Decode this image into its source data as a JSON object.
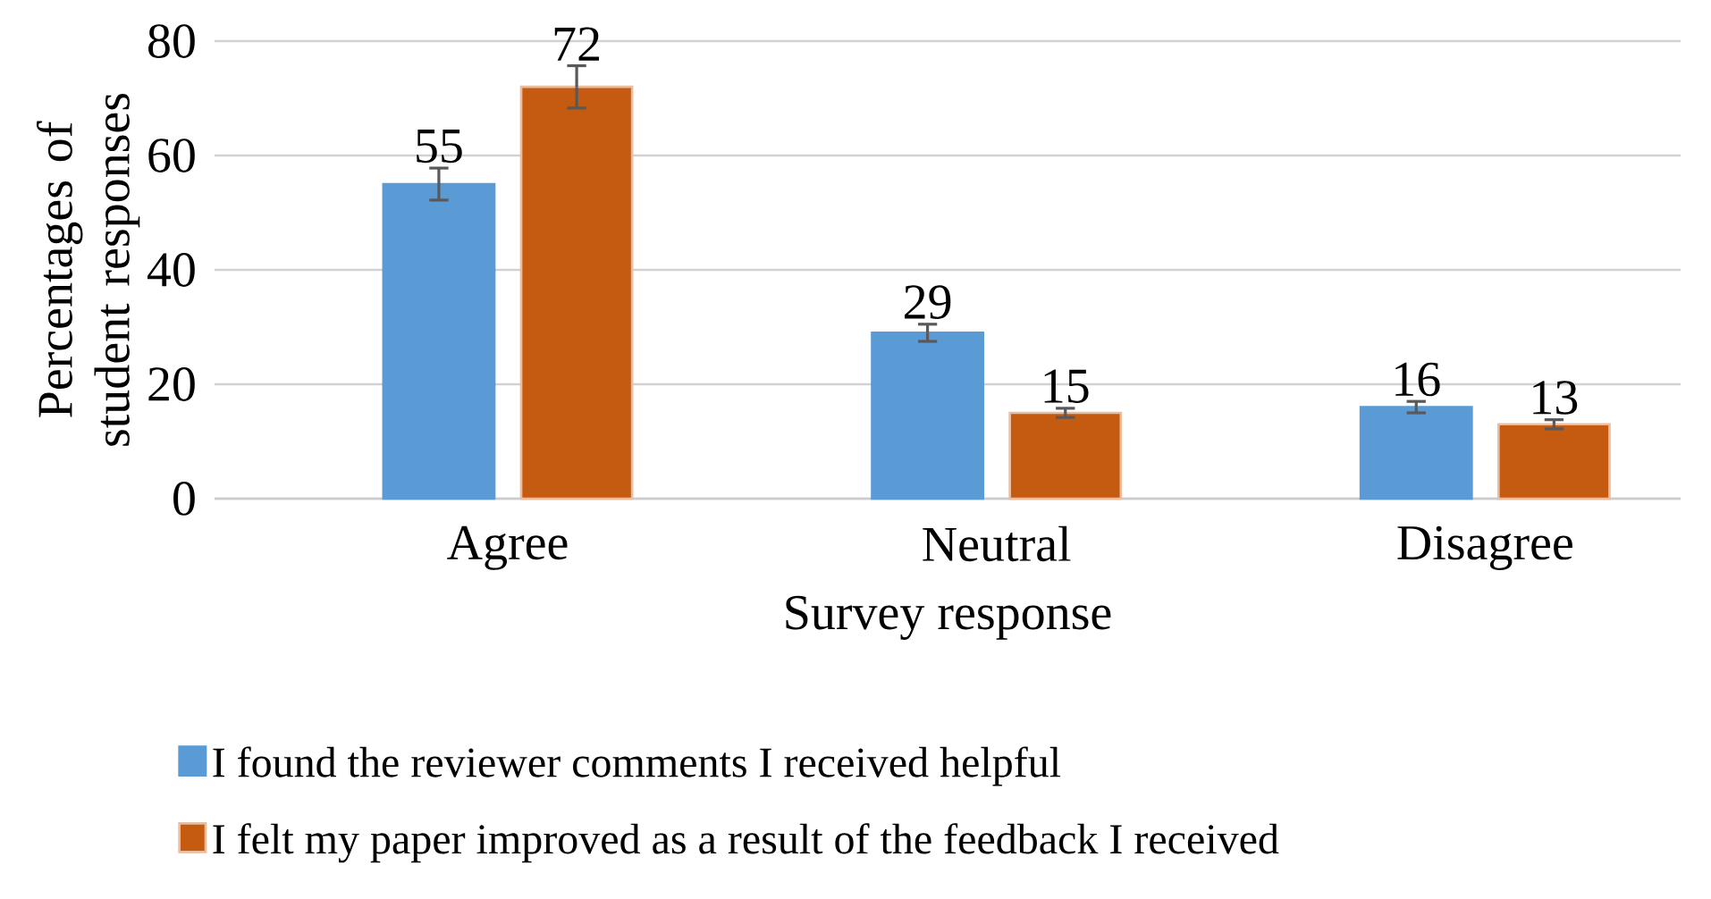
{
  "chart_data": {
    "type": "bar",
    "xlabel": "Survey response",
    "ylabel": "Percentages of student responses",
    "categories": [
      "Agree",
      "Neutral",
      "Disagree"
    ],
    "series": [
      {
        "name": "I found the reviewer comments I received helpful",
        "color": "#5b9bd5",
        "values": [
          55,
          29,
          16
        ],
        "errors": [
          2.8,
          1.5,
          1
        ]
      },
      {
        "name": "I felt my paper improved as a result of the feedback I received",
        "color": "#c55a11",
        "values": [
          72,
          15,
          13
        ],
        "errors": [
          3.7,
          0.8,
          0.8
        ]
      }
    ],
    "ylim": [
      0,
      80
    ],
    "yticks": [
      0,
      20,
      40,
      60,
      80
    ],
    "grid": "y",
    "legend": "bottom",
    "data_labels": true
  }
}
